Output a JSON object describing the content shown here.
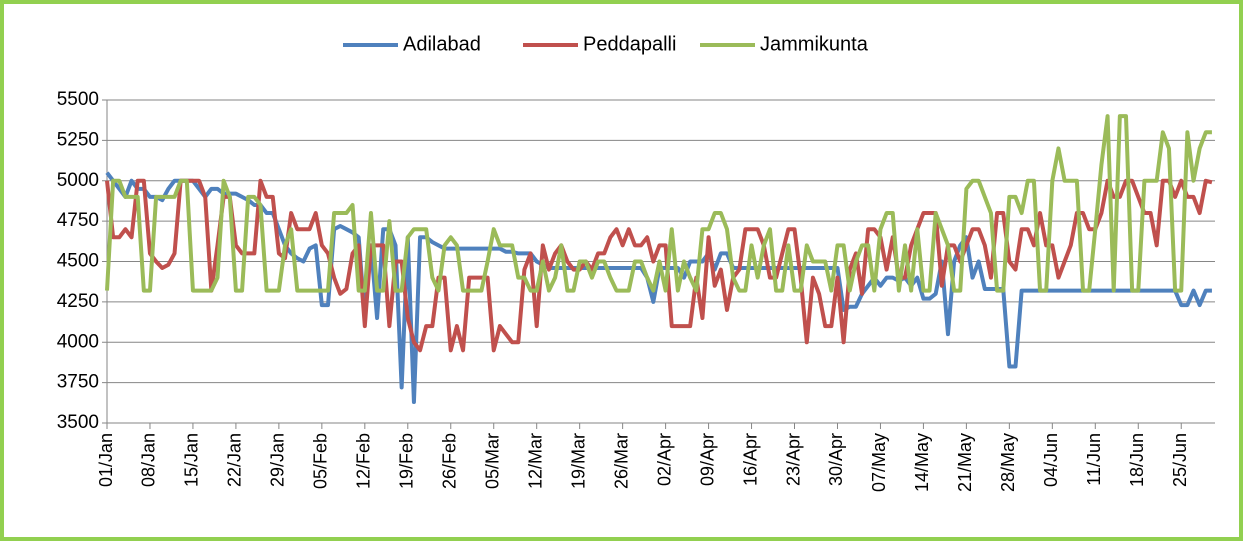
{
  "chart_data": {
    "type": "line",
    "categories": [
      "01/Jan",
      null,
      null,
      null,
      null,
      null,
      null,
      "08/Jan",
      null,
      null,
      null,
      null,
      null,
      null,
      "15/Jan",
      null,
      null,
      null,
      null,
      null,
      null,
      "22/Jan",
      null,
      null,
      null,
      null,
      null,
      null,
      "29/Jan",
      null,
      null,
      null,
      null,
      null,
      null,
      "05/Feb",
      null,
      null,
      null,
      null,
      null,
      null,
      "12/Feb",
      null,
      null,
      null,
      null,
      null,
      null,
      "19/Feb",
      null,
      null,
      null,
      null,
      null,
      null,
      "26/Feb",
      null,
      null,
      null,
      null,
      null,
      null,
      "05/Mar",
      null,
      null,
      null,
      null,
      null,
      null,
      "12/Mar",
      null,
      null,
      null,
      null,
      null,
      null,
      "19/Mar",
      null,
      null,
      null,
      null,
      null,
      null,
      "26/Mar",
      null,
      null,
      null,
      null,
      null,
      null,
      "02/Apr",
      null,
      null,
      null,
      null,
      null,
      null,
      "09/Apr",
      null,
      null,
      null,
      null,
      null,
      null,
      "16/Apr",
      null,
      null,
      null,
      null,
      null,
      null,
      "23/Apr",
      null,
      null,
      null,
      null,
      null,
      null,
      "30/Apr",
      null,
      null,
      null,
      null,
      null,
      null,
      "07/May",
      null,
      null,
      null,
      null,
      null,
      null,
      "14/May",
      null,
      null,
      null,
      null,
      null,
      null,
      "21/May",
      null,
      null,
      null,
      null,
      null,
      null,
      "28/May",
      null,
      null,
      null,
      null,
      null,
      null,
      "04/Jun",
      null,
      null,
      null,
      null,
      null,
      null,
      "11/Jun",
      null,
      null,
      null,
      null,
      null,
      null,
      "18/Jun",
      null,
      null,
      null,
      null,
      null,
      null,
      "25/Jun",
      null,
      null,
      null,
      null,
      null
    ],
    "series": [
      {
        "name": "Adilabad",
        "color": "#4f81bd",
        "values": [
          5050,
          5000,
          4950,
          4900,
          5000,
          4950,
          4950,
          4900,
          4900,
          4880,
          4950,
          5000,
          5000,
          5000,
          5000,
          4950,
          4900,
          4950,
          4950,
          4920,
          4920,
          4920,
          4900,
          4880,
          4850,
          4850,
          4800,
          4800,
          4700,
          4600,
          4550,
          4520,
          4500,
          4580,
          4600,
          4230,
          4230,
          4700,
          4720,
          4700,
          4680,
          4650,
          4150,
          4600,
          4150,
          4700,
          4700,
          4600,
          3720,
          4650,
          3630,
          4650,
          4650,
          4620,
          4600,
          4580,
          4580,
          4580,
          4580,
          4580,
          4580,
          4580,
          4580,
          4580,
          4580,
          4560,
          4560,
          4550,
          4550,
          4550,
          4500,
          4480,
          4460,
          4460,
          4460,
          4460,
          4460,
          4460,
          4460,
          4460,
          4460,
          4460,
          4460,
          4460,
          4460,
          4460,
          4460,
          4460,
          4400,
          4250,
          4460,
          4460,
          4460,
          4460,
          4400,
          4500,
          4500,
          4500,
          4550,
          4450,
          4550,
          4550,
          4460,
          4460,
          4460,
          4460,
          4460,
          4460,
          4460,
          4460,
          4460,
          4460,
          4460,
          4460,
          4460,
          4460,
          4460,
          4460,
          4460,
          4460,
          4200,
          4220,
          4220,
          4300,
          4350,
          4400,
          4350,
          4400,
          4400,
          4380,
          4400,
          4350,
          4400,
          4270,
          4270,
          4300,
          4500,
          4050,
          4500,
          4600,
          4650,
          4400,
          4500,
          4330,
          4330,
          4330,
          4330,
          3850,
          3850,
          4320,
          4320,
          4320,
          4320,
          4320,
          4320,
          4320,
          4320,
          4320,
          4320,
          4320,
          4320,
          4320,
          4320,
          4320,
          4320,
          4320,
          4320,
          4320,
          4320,
          4320,
          4320,
          4320,
          4320,
          4320,
          4320,
          4230,
          4230,
          4320,
          4230,
          4320,
          4320
        ]
      },
      {
        "name": "Peddapalli",
        "color": "#c0504d",
        "values": [
          5000,
          4650,
          4650,
          4700,
          4650,
          5000,
          5000,
          4550,
          4500,
          4460,
          4480,
          4550,
          5000,
          5000,
          5000,
          5000,
          4900,
          4320,
          4600,
          4900,
          4900,
          4600,
          4550,
          4550,
          4550,
          5000,
          4900,
          4900,
          4550,
          4520,
          4800,
          4700,
          4700,
          4700,
          4800,
          4600,
          4550,
          4400,
          4300,
          4330,
          4550,
          4600,
          4100,
          4600,
          4600,
          4600,
          4100,
          4500,
          4500,
          4150,
          4000,
          3950,
          4100,
          4100,
          4400,
          4400,
          3950,
          4100,
          3950,
          4400,
          4400,
          4400,
          4400,
          3950,
          4100,
          4050,
          4000,
          4000,
          4450,
          4550,
          4100,
          4600,
          4450,
          4550,
          4600,
          4500,
          4450,
          4450,
          4500,
          4450,
          4550,
          4550,
          4650,
          4700,
          4600,
          4700,
          4600,
          4600,
          4650,
          4500,
          4600,
          4600,
          4100,
          4100,
          4100,
          4100,
          4400,
          4150,
          4650,
          4350,
          4450,
          4200,
          4400,
          4450,
          4700,
          4700,
          4700,
          4600,
          4400,
          4400,
          4550,
          4700,
          4700,
          4400,
          4000,
          4400,
          4300,
          4100,
          4100,
          4400,
          4000,
          4450,
          4550,
          4300,
          4700,
          4700,
          4650,
          4450,
          4650,
          4400,
          4400,
          4600,
          4700,
          4800,
          4800,
          4800,
          4350,
          4600,
          4600,
          4500,
          4600,
          4700,
          4700,
          4600,
          4400,
          4800,
          4800,
          4500,
          4450,
          4700,
          4700,
          4600,
          4800,
          4600,
          4600,
          4400,
          4500,
          4600,
          4800,
          4800,
          4700,
          4700,
          4800,
          5000,
          4900,
          4900,
          5000,
          5000,
          4900,
          4800,
          4800,
          4600,
          5000,
          5000,
          4900,
          5000,
          4900,
          4900,
          4800,
          5000,
          4990
        ]
      },
      {
        "name": "Jammikunta",
        "color": "#9bbb59",
        "values": [
          4320,
          5000,
          5000,
          4900,
          4900,
          4900,
          4320,
          4320,
          4900,
          4900,
          4900,
          4900,
          5000,
          5000,
          4320,
          4320,
          4320,
          4320,
          4400,
          5000,
          4900,
          4320,
          4320,
          4900,
          4900,
          4850,
          4320,
          4320,
          4320,
          4600,
          4700,
          4320,
          4320,
          4320,
          4320,
          4320,
          4320,
          4800,
          4800,
          4800,
          4850,
          4320,
          4320,
          4800,
          4320,
          4320,
          4750,
          4320,
          4320,
          4650,
          4700,
          4700,
          4700,
          4400,
          4320,
          4600,
          4650,
          4600,
          4320,
          4320,
          4320,
          4320,
          4500,
          4700,
          4600,
          4600,
          4600,
          4400,
          4400,
          4320,
          4320,
          4500,
          4320,
          4400,
          4600,
          4320,
          4320,
          4500,
          4500,
          4400,
          4500,
          4500,
          4400,
          4320,
          4320,
          4320,
          4500,
          4500,
          4400,
          4320,
          4500,
          4320,
          4700,
          4320,
          4500,
          4400,
          4320,
          4700,
          4700,
          4800,
          4800,
          4700,
          4400,
          4320,
          4320,
          4600,
          4400,
          4600,
          4700,
          4320,
          4320,
          4600,
          4320,
          4320,
          4600,
          4500,
          4500,
          4500,
          4320,
          4600,
          4600,
          4320,
          4500,
          4600,
          4600,
          4320,
          4700,
          4800,
          4800,
          4320,
          4600,
          4320,
          4700,
          4320,
          4320,
          4800,
          4700,
          4600,
          4320,
          4320,
          4950,
          5000,
          5000,
          4900,
          4800,
          4320,
          4320,
          4900,
          4900,
          4800,
          5000,
          5000,
          4320,
          4320,
          5000,
          5200,
          5000,
          5000,
          5000,
          4320,
          4320,
          4700,
          5100,
          5400,
          4320,
          5400,
          5400,
          4320,
          4320,
          5000,
          5000,
          5000,
          5300,
          5200,
          4320,
          4320,
          5300,
          5000,
          5200,
          5300,
          5300
        ]
      }
    ],
    "ylim": [
      3500,
      5500
    ],
    "yticks": [
      3500,
      3750,
      4000,
      4250,
      4500,
      4750,
      5000,
      5250,
      5500
    ],
    "grid": true,
    "legend": "top"
  }
}
